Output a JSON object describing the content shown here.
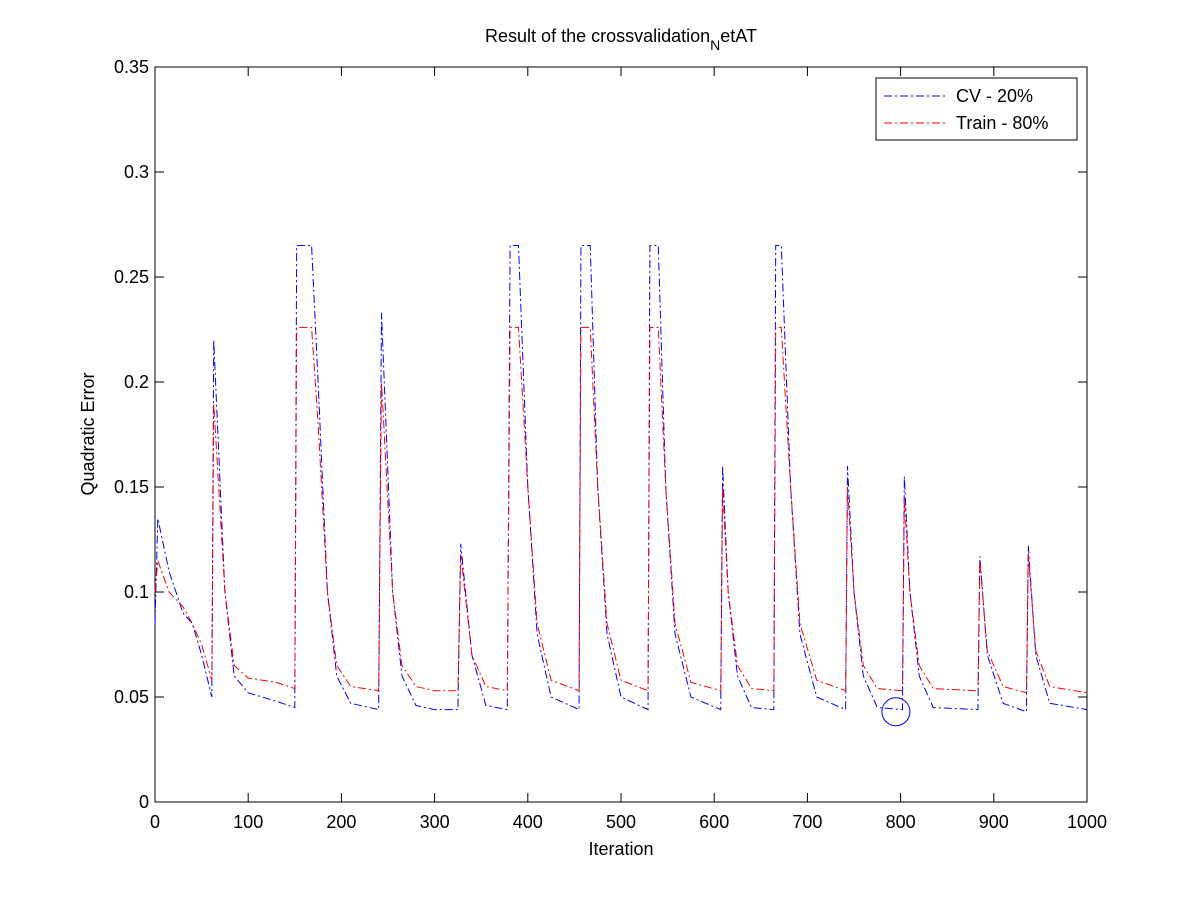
{
  "chart_data": {
    "type": "line",
    "title_parts": [
      "Result of the crossvalidation",
      "N",
      "etAT"
    ],
    "x_label": "Iteration",
    "y_label": "Quadratic Error",
    "x": [
      0,
      3,
      15,
      30,
      40,
      50,
      61,
      63,
      75,
      85,
      100,
      130,
      150,
      152,
      168,
      175,
      185,
      195,
      210,
      240,
      243,
      255,
      265,
      280,
      300,
      325,
      328,
      340,
      355,
      378,
      381,
      390,
      400,
      410,
      425,
      455,
      457,
      467,
      475,
      485,
      500,
      529,
      531,
      540,
      548,
      558,
      575,
      607,
      609,
      615,
      625,
      640,
      664,
      666,
      672,
      682,
      692,
      710,
      741,
      743,
      750,
      760,
      775,
      802,
      804,
      810,
      820,
      835,
      883,
      885,
      893,
      910,
      935,
      937,
      945,
      960,
      1000
    ],
    "series": [
      {
        "name": "CV - 20%",
        "color": "#0000ff",
        "values": [
          0.085,
          0.135,
          0.11,
          0.09,
          0.085,
          0.07,
          0.05,
          0.22,
          0.1,
          0.06,
          0.052,
          0.048,
          0.045,
          0.265,
          0.265,
          0.2,
          0.1,
          0.06,
          0.047,
          0.044,
          0.233,
          0.1,
          0.06,
          0.046,
          0.044,
          0.044,
          0.123,
          0.07,
          0.046,
          0.044,
          0.265,
          0.265,
          0.15,
          0.08,
          0.05,
          0.044,
          0.265,
          0.265,
          0.15,
          0.08,
          0.05,
          0.044,
          0.265,
          0.265,
          0.15,
          0.08,
          0.05,
          0.044,
          0.16,
          0.1,
          0.06,
          0.045,
          0.044,
          0.265,
          0.265,
          0.15,
          0.08,
          0.05,
          0.044,
          0.16,
          0.1,
          0.06,
          0.045,
          0.044,
          0.155,
          0.1,
          0.06,
          0.045,
          0.044,
          0.117,
          0.07,
          0.047,
          0.043,
          0.122,
          0.07,
          0.047,
          0.044
        ]
      },
      {
        "name": "Train - 80%",
        "color": "#ff0000",
        "values": [
          0.1,
          0.115,
          0.1,
          0.093,
          0.085,
          0.075,
          0.058,
          0.19,
          0.1,
          0.065,
          0.059,
          0.057,
          0.054,
          0.226,
          0.226,
          0.18,
          0.1,
          0.065,
          0.055,
          0.053,
          0.2,
          0.1,
          0.065,
          0.055,
          0.053,
          0.053,
          0.118,
          0.07,
          0.055,
          0.053,
          0.226,
          0.226,
          0.15,
          0.085,
          0.058,
          0.053,
          0.226,
          0.226,
          0.15,
          0.085,
          0.058,
          0.053,
          0.226,
          0.226,
          0.15,
          0.085,
          0.057,
          0.053,
          0.15,
          0.1,
          0.065,
          0.054,
          0.053,
          0.226,
          0.226,
          0.15,
          0.085,
          0.058,
          0.053,
          0.15,
          0.1,
          0.065,
          0.054,
          0.053,
          0.145,
          0.1,
          0.065,
          0.054,
          0.053,
          0.115,
          0.072,
          0.055,
          0.052,
          0.118,
          0.072,
          0.055,
          0.052
        ]
      }
    ],
    "marker": {
      "x": 795,
      "y": 0.043,
      "color": "#0000ff"
    },
    "xlim": [
      0,
      1000
    ],
    "xticks": [
      0,
      100,
      200,
      300,
      400,
      500,
      600,
      700,
      800,
      900,
      1000
    ],
    "ylim": [
      0,
      0.35
    ],
    "yticks": [
      0,
      0.05,
      0.1,
      0.15,
      0.2,
      0.25,
      0.3,
      0.35
    ],
    "legend": "top-right"
  }
}
